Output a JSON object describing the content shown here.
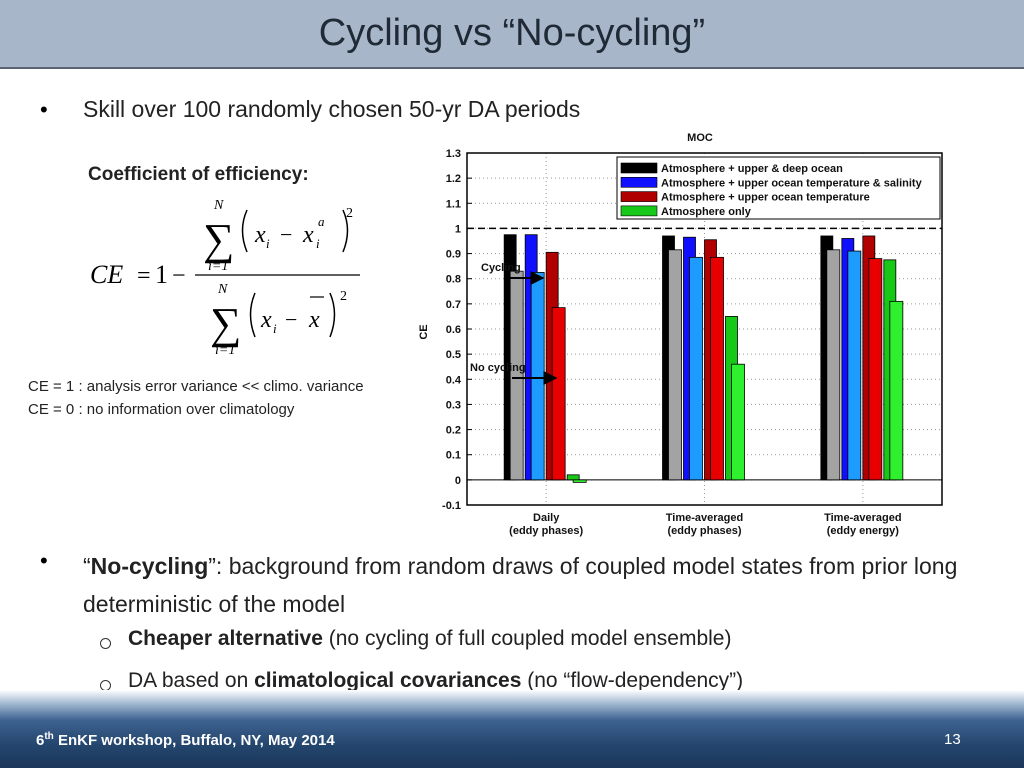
{
  "slide": {
    "title": "Cycling vs “No-cycling”",
    "bullet1": "Skill over 100 randomly chosen 50-yr DA periods",
    "formula_label": "Coefficient of efficiency:",
    "formula": {
      "lhs": "CE",
      "equals": "=",
      "one": "1",
      "minus": "−",
      "sum_upper": "N",
      "sum_lower": "i=1",
      "x": "x",
      "sub": "i",
      "sup": "a",
      "power": "2"
    },
    "notes": [
      "CE = 1 : analysis error variance  << climo. variance",
      "CE = 0 : no information over climatology"
    ],
    "bullet2": [
      "“",
      "No-cycling",
      "”:  background from random draws of coupled model states from prior long deterministic of the model"
    ],
    "sub_bullets": [
      {
        "bold": "Cheaper alternative",
        "after": " (no cycling of full coupled model ensemble)"
      },
      {
        "before": "DA based on ",
        "bold": "climatological covariances",
        "after": " (no “flow-dependency”)"
      }
    ],
    "footer": {
      "ordinal": "6",
      "suffix": "th",
      "text": " EnKF workshop, Buffalo, NY, May 2014",
      "page": "13"
    }
  },
  "chart_data": {
    "type": "bar",
    "title": "MOC",
    "ylabel": "CE",
    "categories": [
      [
        "Daily",
        "(eddy phases)"
      ],
      [
        "Time-averaged",
        "(eddy phases)"
      ],
      [
        "Time-averaged",
        "(eddy energy)"
      ]
    ],
    "series": [
      {
        "name": "Atmosphere + upper & deep ocean",
        "color": "#000000",
        "values": [
          0.975,
          0.97,
          0.97
        ],
        "no_cycling_color": "#a3a3a3",
        "no_cycling_values": [
          0.83,
          0.915,
          0.915
        ]
      },
      {
        "name": "Atmosphere + upper ocean temperature & salinity",
        "color": "#1010ff",
        "values": [
          0.975,
          0.965,
          0.96
        ],
        "no_cycling_color": "#1e9bff",
        "no_cycling_values": [
          0.825,
          0.885,
          0.91
        ]
      },
      {
        "name": "Atmosphere + upper ocean temperature",
        "color": "#b00000",
        "values": [
          0.905,
          0.955,
          0.97
        ],
        "no_cycling_color": "#e80000",
        "no_cycling_values": [
          0.685,
          0.885,
          0.88
        ]
      },
      {
        "name": "Atmosphere only",
        "color": "#18c818",
        "values": [
          0.02,
          0.65,
          0.875
        ],
        "no_cycling_color": "#2ef02e",
        "no_cycling_values": [
          -0.01,
          0.46,
          0.71
        ]
      }
    ],
    "ylim": [
      -0.1,
      1.3
    ],
    "yticks": [
      -0.1,
      0,
      0.1,
      0.2,
      0.3,
      0.4,
      0.5,
      0.6,
      0.7,
      0.8,
      0.9,
      1,
      1.1,
      1.2,
      1.3
    ],
    "reference_line": 1,
    "grid": true,
    "annotations": [
      "Cycling",
      "No cycling"
    ]
  }
}
